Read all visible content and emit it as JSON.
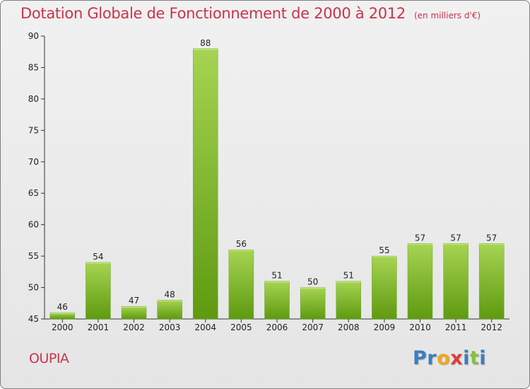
{
  "header": {
    "title": "Dotation Globale de Fonctionnement de 2000 à 2012",
    "unit": "(en milliers d'€)"
  },
  "footer": {
    "commune": "OUPIA",
    "logo_letters": [
      {
        "ch": "P",
        "color": "#3a7ec2"
      },
      {
        "ch": "r",
        "color": "#3a7ec2"
      },
      {
        "ch": "o",
        "color": "#f2a51e"
      },
      {
        "ch": "x",
        "color": "#e23b3b"
      },
      {
        "ch": "i",
        "color": "#3a7ec2"
      },
      {
        "ch": "t",
        "color": "#84c13d"
      },
      {
        "ch": "i",
        "color": "#3a7ec2"
      }
    ]
  },
  "colors": {
    "bar_light": "#a6d452",
    "bar_dark": "#5e9a10",
    "accent": "#c8344a"
  },
  "chart_data": {
    "type": "bar",
    "title": "Dotation Globale de Fonctionnement de 2000 à 2012",
    "subtitle": "(en milliers d'€)",
    "categories": [
      "2000",
      "2001",
      "2002",
      "2003",
      "2004",
      "2005",
      "2006",
      "2007",
      "2008",
      "2009",
      "2010",
      "2011",
      "2012"
    ],
    "values": [
      46,
      54,
      47,
      48,
      88,
      56,
      51,
      50,
      51,
      55,
      57,
      57,
      57
    ],
    "ylim": [
      45,
      90
    ],
    "yticks": [
      45,
      50,
      55,
      60,
      65,
      70,
      75,
      80,
      85,
      90
    ],
    "xlabel": "",
    "ylabel": "",
    "grid": false
  }
}
